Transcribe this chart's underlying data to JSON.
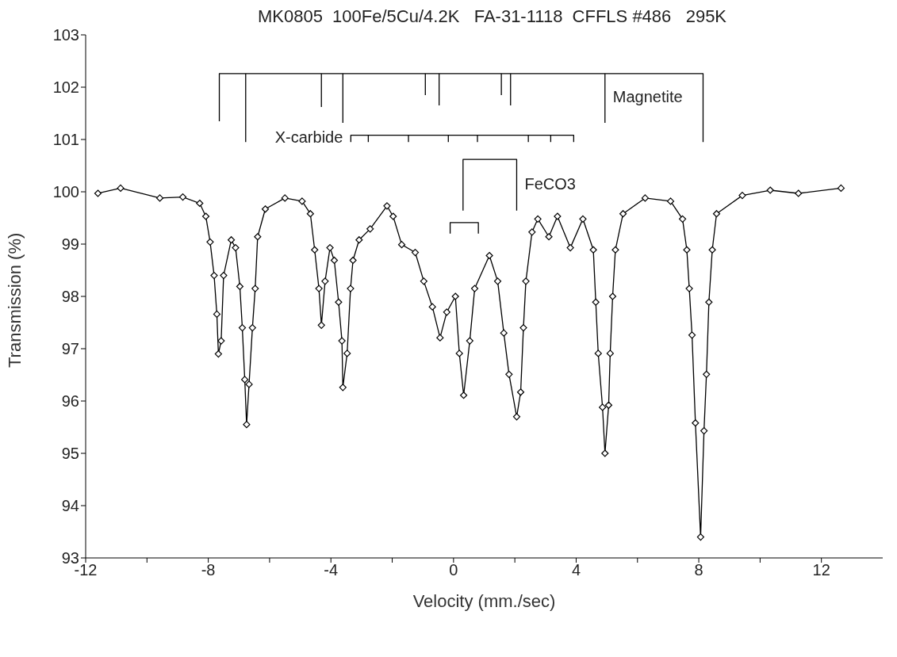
{
  "chart_data": {
    "type": "line",
    "title": "MK0805  100Fe/5Cu/4.2K   FA-31-1118  CFFLS #486   295K",
    "xlabel": "Velocity (mm./sec)",
    "ylabel": "Transmission (%)",
    "xlim": [
      -12,
      14
    ],
    "ylim": [
      93,
      103
    ],
    "xticks": [
      -12,
      {
        "value": -10,
        "label": null
      },
      -8,
      {
        "value": -6,
        "label": null
      },
      -4,
      {
        "value": -2,
        "label": null
      },
      0,
      {
        "value": 2,
        "label": null
      },
      4,
      {
        "value": 6,
        "label": null
      },
      8,
      {
        "value": 10,
        "label": null
      },
      12
    ],
    "yticks": [
      93,
      94,
      95,
      96,
      97,
      98,
      99,
      100,
      101,
      102,
      103
    ],
    "grid": false,
    "marker": "diamond",
    "line_style": "solid",
    "series": [
      {
        "color": "#000000",
        "x": [
          -11.6,
          -10.86,
          -9.58,
          -8.83,
          -8.28,
          -8.08,
          -7.94,
          -7.81,
          -7.72,
          -7.67,
          -7.58,
          -7.5,
          -7.25,
          -7.11,
          -6.97,
          -6.89,
          -6.81,
          -6.75,
          -6.67,
          -6.56,
          -6.47,
          -6.39,
          -6.14,
          -5.5,
          -4.94,
          -4.67,
          -4.53,
          -4.39,
          -4.31,
          -4.19,
          -4.03,
          -3.89,
          -3.75,
          -3.64,
          -3.61,
          -3.47,
          -3.36,
          -3.28,
          -3.08,
          -2.72,
          -2.17,
          -1.97,
          -1.69,
          -1.25,
          -0.97,
          -0.69,
          -0.44,
          -0.22,
          0.06,
          0.19,
          0.33,
          0.53,
          0.69,
          1.17,
          1.44,
          1.64,
          1.81,
          2.06,
          2.19,
          2.28,
          2.36,
          2.56,
          2.75,
          3.11,
          3.39,
          3.81,
          4.22,
          4.56,
          4.64,
          4.72,
          4.86,
          4.94,
          5.06,
          5.11,
          5.19,
          5.28,
          5.53,
          6.25,
          7.08,
          7.47,
          7.61,
          7.69,
          7.78,
          7.89,
          8.06,
          8.17,
          8.25,
          8.33,
          8.44,
          8.58,
          9.42,
          10.33,
          11.25,
          12.64
        ],
        "values": [
          99.97,
          100.07,
          99.88,
          99.9,
          99.78,
          99.53,
          99.04,
          98.4,
          97.66,
          96.9,
          97.15,
          98.4,
          99.08,
          98.93,
          98.19,
          97.4,
          96.41,
          95.55,
          96.32,
          97.4,
          98.15,
          99.14,
          99.67,
          99.88,
          99.82,
          99.58,
          98.89,
          98.15,
          97.45,
          98.29,
          98.93,
          98.69,
          97.89,
          97.15,
          96.26,
          96.91,
          98.15,
          98.69,
          99.08,
          99.29,
          99.73,
          99.53,
          98.99,
          98.84,
          98.29,
          97.8,
          97.21,
          97.7,
          98.0,
          96.91,
          96.11,
          97.15,
          98.15,
          98.78,
          98.29,
          97.3,
          96.51,
          95.7,
          96.17,
          97.4,
          98.29,
          99.23,
          99.48,
          99.14,
          99.53,
          98.93,
          99.48,
          98.89,
          97.89,
          96.91,
          95.88,
          95.0,
          95.92,
          96.91,
          98.0,
          98.89,
          99.58,
          99.88,
          99.82,
          99.48,
          98.89,
          98.15,
          97.26,
          95.58,
          93.4,
          95.43,
          96.51,
          97.89,
          98.89,
          99.58,
          99.93,
          100.03,
          99.97,
          100.07
        ]
      },
      {
        "name": "Magnetite",
        "color": "#000000",
        "marker": "none",
        "x": [
          -7.64,
          -7.64,
          8.14,
          8.14,
          null,
          -6.78,
          -6.78,
          null,
          -4.31,
          -4.31,
          null,
          -3.61,
          -3.61,
          null,
          -0.92,
          -0.92,
          null,
          -0.47,
          -0.47,
          null,
          1.56,
          1.56,
          null,
          1.86,
          1.86,
          null,
          4.94,
          4.94
        ],
        "values": [
          101.35,
          102.26,
          102.26,
          100.95,
          null,
          102.26,
          100.95,
          null,
          102.26,
          101.62,
          null,
          102.26,
          101.32,
          null,
          102.26,
          101.85,
          null,
          102.26,
          101.65,
          null,
          102.26,
          101.85,
          null,
          102.26,
          101.65,
          null,
          102.26,
          101.32
        ]
      },
      {
        "name": "X-carbide",
        "color": "#000000",
        "marker": "none",
        "x": [
          -2.78,
          -2.78,
          null,
          -1.47,
          -1.47,
          null,
          -0.17,
          -0.17,
          null,
          0.78,
          0.78,
          null,
          2.44,
          2.44,
          null,
          3.17,
          3.17,
          null,
          3.92,
          3.92,
          -3.35,
          -3.35
        ],
        "values": [
          101.08,
          100.95,
          null,
          101.08,
          100.95,
          null,
          101.08,
          100.95,
          null,
          101.08,
          100.95,
          null,
          101.08,
          100.95,
          null,
          101.08,
          100.95,
          null,
          100.95,
          101.08,
          101.08,
          100.95
        ]
      },
      {
        "name": "FeCO3",
        "color": "#000000",
        "marker": "none",
        "x": [
          0.31,
          0.31,
          2.06,
          2.06
        ],
        "values": [
          99.64,
          100.62,
          100.62,
          99.64
        ]
      },
      {
        "color": "#000000",
        "marker": "none",
        "x": [
          -0.11,
          -0.11,
          0.81,
          0.81
        ],
        "values": [
          99.2,
          99.41,
          99.41,
          99.2
        ]
      }
    ]
  }
}
